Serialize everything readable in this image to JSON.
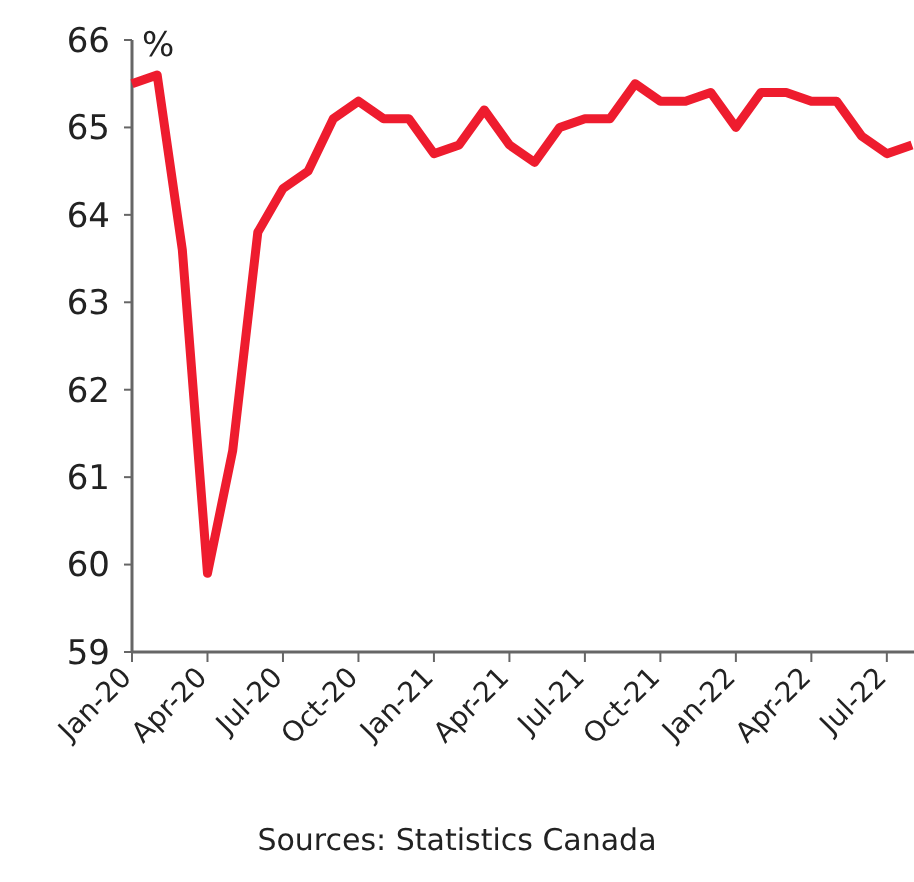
{
  "chart_data": {
    "type": "line",
    "ylabel": "%",
    "annotations": [
      "Sources: Statistics Canada"
    ],
    "categories": [
      "Jan-20",
      null,
      null,
      "Apr-20",
      null,
      null,
      "Jul-20",
      null,
      null,
      "Oct-20",
      null,
      null,
      "Jan-21",
      null,
      null,
      "Apr-21",
      null,
      null,
      "Jul-21",
      null,
      null,
      "Oct-21",
      null,
      null,
      "Jan-22",
      null,
      null,
      "Apr-22",
      null,
      null,
      "Jul-22",
      null
    ],
    "series": [
      {
        "color": "#ee1c2e",
        "values": [
          65.5,
          65.6,
          63.6,
          59.9,
          61.3,
          63.8,
          64.3,
          64.5,
          65.1,
          65.3,
          65.1,
          65.1,
          64.7,
          64.8,
          65.2,
          64.8,
          64.6,
          65.0,
          65.1,
          65.1,
          65.5,
          65.3,
          65.3,
          65.4,
          65.0,
          65.4,
          65.4,
          65.3,
          65.3,
          64.9,
          64.7,
          64.8
        ]
      }
    ],
    "ylim": [
      59,
      66
    ],
    "yticks": [
      59,
      60,
      61,
      62,
      63,
      64,
      65,
      66
    ],
    "grid": false,
    "marker": "none",
    "line_style": "solid"
  }
}
